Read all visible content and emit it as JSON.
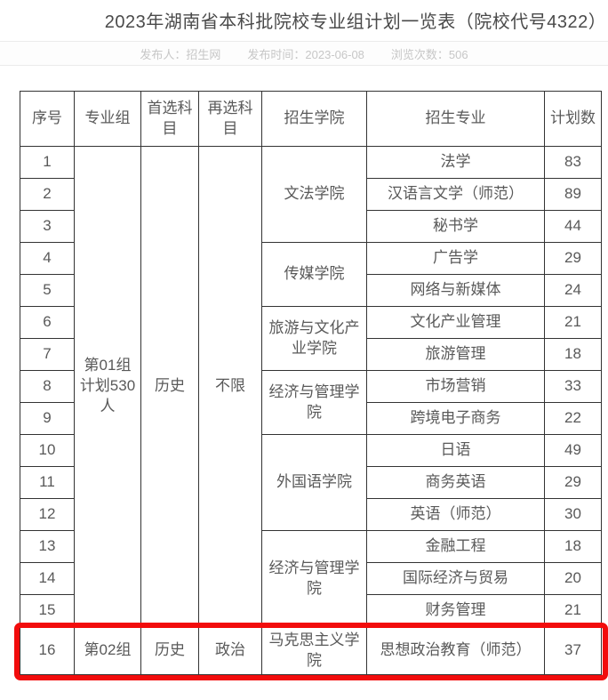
{
  "page": {
    "title": "2023年湖南省本科批院校专业组计划一览表（院校代号4322）"
  },
  "meta": {
    "items": [
      "发布人：招生网",
      "发布时间：2023-06-08",
      "浏览次数：506"
    ]
  },
  "table": {
    "headers": [
      "序号",
      "专业组",
      "首选科目",
      "再选科目",
      "招生学院",
      "招生专业",
      "计划数"
    ],
    "rows": [
      [
        {
          "t": "1"
        },
        {
          "t": "第01组\n计划530人",
          "rs": 15
        },
        {
          "t": "历史",
          "rs": 15
        },
        {
          "t": "不限",
          "rs": 15
        },
        {
          "t": "文法学院",
          "rs": 3
        },
        {
          "t": "法学"
        },
        {
          "t": "83"
        }
      ],
      [
        {
          "t": "2"
        },
        {
          "t": "汉语言文学（师范）"
        },
        {
          "t": "89"
        }
      ],
      [
        {
          "t": "3"
        },
        {
          "t": "秘书学"
        },
        {
          "t": "44"
        }
      ],
      [
        {
          "t": "4"
        },
        {
          "t": "传媒学院",
          "rs": 2
        },
        {
          "t": "广告学"
        },
        {
          "t": "29"
        }
      ],
      [
        {
          "t": "5"
        },
        {
          "t": "网络与新媒体"
        },
        {
          "t": "24"
        }
      ],
      [
        {
          "t": "6"
        },
        {
          "t": "旅游与文化产业学院",
          "rs": 2
        },
        {
          "t": "文化产业管理"
        },
        {
          "t": "21"
        }
      ],
      [
        {
          "t": "7"
        },
        {
          "t": "旅游管理"
        },
        {
          "t": "18"
        }
      ],
      [
        {
          "t": "8"
        },
        {
          "t": "经济与管理学院",
          "rs": 2
        },
        {
          "t": "市场营销"
        },
        {
          "t": "33"
        }
      ],
      [
        {
          "t": "9"
        },
        {
          "t": "跨境电子商务"
        },
        {
          "t": "22"
        }
      ],
      [
        {
          "t": "10"
        },
        {
          "t": "外国语学院",
          "rs": 3
        },
        {
          "t": "日语"
        },
        {
          "t": "49"
        }
      ],
      [
        {
          "t": "11"
        },
        {
          "t": "商务英语"
        },
        {
          "t": "29"
        }
      ],
      [
        {
          "t": "12"
        },
        {
          "t": "英语（师范）"
        },
        {
          "t": "30"
        }
      ],
      [
        {
          "t": "13"
        },
        {
          "t": "经济与管理学院",
          "rs": 3
        },
        {
          "t": "金融工程"
        },
        {
          "t": "18"
        }
      ],
      [
        {
          "t": "14"
        },
        {
          "t": "国际经济与贸易"
        },
        {
          "t": "20"
        }
      ],
      [
        {
          "t": "15"
        },
        {
          "t": "财务管理"
        },
        {
          "t": "21"
        }
      ],
      [
        {
          "t": "16"
        },
        {
          "t": "第02组"
        },
        {
          "t": "历史"
        },
        {
          "t": "政治"
        },
        {
          "t": "马克思主义学院"
        },
        {
          "t": "思想政治教育（师范）"
        },
        {
          "t": "37"
        }
      ]
    ],
    "highlight": {
      "row_serial": "16",
      "color": "#f20c0c"
    }
  }
}
